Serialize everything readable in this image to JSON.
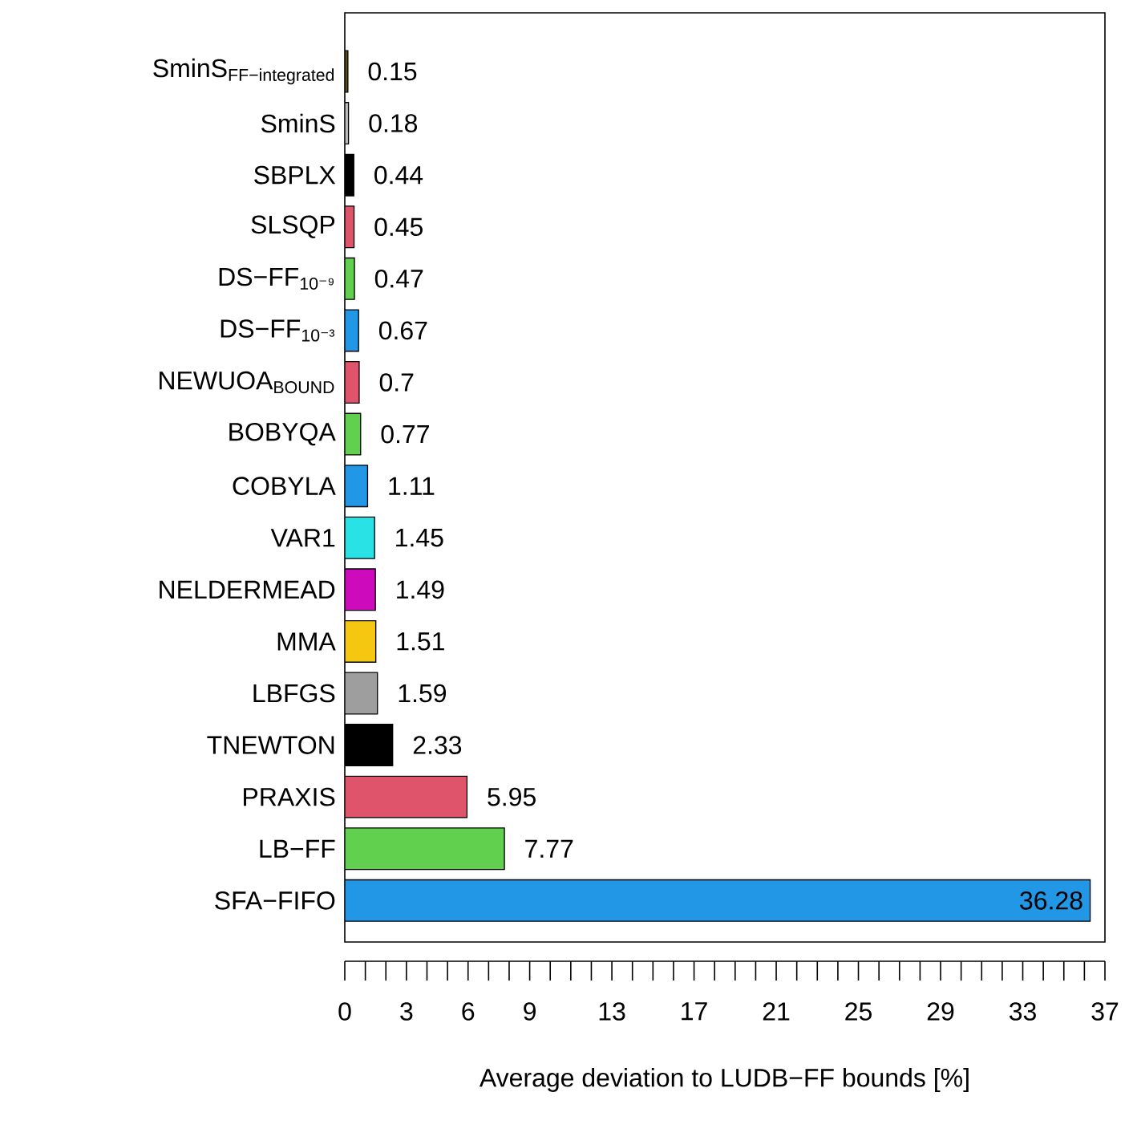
{
  "chart_data": {
    "type": "bar",
    "orientation": "horizontal",
    "xlabel": "Average deviation to LUDB−FF bounds [%]",
    "categories": [
      "\\text{SminS}_{\\text{FF−integrated}}",
      "SminS",
      "SBPLX",
      "SLSQP",
      "DS−FF$_{10⁻⁹}$",
      "DS−FF$_{10⁻³}$",
      "NEWUOA$_{BOUND}$",
      "BOBYQA",
      "COBYLA",
      "VAR1",
      "NELDERMEAD",
      "MMA",
      "LBFGS",
      "TNEWTON",
      "PRAXIS",
      "LB−FF",
      "SFA−FIFO"
    ],
    "values": [
      0.15,
      0.18,
      0.44,
      0.45,
      0.47,
      0.67,
      0.7,
      0.77,
      1.11,
      1.45,
      1.49,
      1.51,
      1.59,
      2.33,
      5.95,
      7.77,
      36.28
    ],
    "value_labels": [
      "0.15",
      "0.18",
      "0.44",
      "0.45",
      "0.47",
      "0.67",
      "0.7",
      "0.77",
      "1.11",
      "1.45",
      "1.49",
      "1.51",
      "1.59",
      "2.33",
      "5.95",
      "7.77",
      "36.28"
    ],
    "colors": [
      "#5c4a14",
      "#bdbdbd",
      "#000000",
      "#df536b",
      "#61d04f",
      "#2297e6",
      "#df536b",
      "#61d04f",
      "#2297e6",
      "#28e2e5",
      "#cd0bbc",
      "#f5c710",
      "#9e9e9e",
      "#000000",
      "#df536b",
      "#61d04f",
      "#2297e6"
    ],
    "xlim": [
      0,
      37
    ],
    "xticks": [
      0,
      {
        "value": 1,
        "label": null
      },
      {
        "value": 2,
        "label": null
      },
      3,
      {
        "value": 4,
        "label": null
      },
      {
        "value": 5,
        "label": null
      },
      6,
      {
        "value": 7,
        "label": null
      },
      {
        "value": 8,
        "label": null
      },
      9,
      {
        "value": 10,
        "label": null
      },
      {
        "value": 11,
        "label": null
      },
      {
        "value": 12,
        "label": null
      },
      13,
      {
        "value": 14,
        "label": null
      },
      {
        "value": 15,
        "label": null
      },
      {
        "value": 16,
        "label": null
      },
      17,
      {
        "value": 18,
        "label": null
      },
      {
        "value": 19,
        "label": null
      },
      {
        "value": 20,
        "label": null
      },
      21,
      {
        "value": 22,
        "label": null
      },
      {
        "value": 23,
        "label": null
      },
      {
        "value": 24,
        "label": null
      },
      25,
      {
        "value": 26,
        "label": null
      },
      {
        "value": 27,
        "label": null
      },
      {
        "value": 28,
        "label": null
      },
      29,
      {
        "value": 30,
        "label": null
      },
      {
        "value": 31,
        "label": null
      },
      {
        "value": 32,
        "label": null
      },
      33,
      {
        "value": 34,
        "label": null
      },
      {
        "value": 35,
        "label": null
      },
      {
        "value": 36,
        "label": null
      },
      37
    ],
    "grid": false
  }
}
